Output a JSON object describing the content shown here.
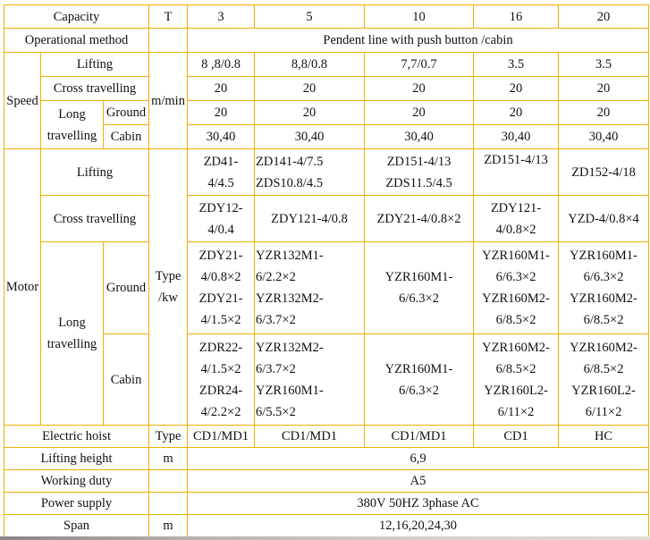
{
  "capacity": {
    "label": "Capacity",
    "unit": "T",
    "values": [
      "3",
      "5",
      "10",
      "16",
      "20"
    ]
  },
  "operational": {
    "label": "Operational method",
    "value": "Pendent line with push button /cabin"
  },
  "speed": {
    "label": "Speed",
    "unit": "m/min",
    "lifting": {
      "label": "Lifting",
      "values": [
        "8 ,8/0.8",
        "8,8/0.8",
        "7,7/0.7",
        "3.5",
        "3.5"
      ]
    },
    "cross": {
      "label": "Cross travelling",
      "values": [
        "20",
        "20",
        "20",
        "20",
        "20"
      ]
    },
    "long": {
      "label": "Long\ntravelling",
      "ground": {
        "label": "Ground",
        "values": [
          "20",
          "20",
          "20",
          "20",
          "20"
        ]
      },
      "cabin": {
        "label": "Cabin",
        "values": [
          "30,40",
          "30,40",
          "30,40",
          "30,40",
          "30,40"
        ]
      }
    }
  },
  "motor": {
    "label": "Motor",
    "unit": "Type\n/kw",
    "lifting": {
      "label": "Lifting",
      "values": [
        "ZD41-\n4/4.5",
        "ZD141-4/7.5\nZDS10.8/4.5",
        "ZD151-4/13\nZDS11.5/4.5",
        "ZD151-4/13\n ",
        "ZD152-4/18"
      ]
    },
    "cross": {
      "label": "Cross travelling",
      "values": [
        "ZDY12-\n4/0.4",
        "ZDY121-4/0.8",
        "ZDY21-4/0.8×2",
        "ZDY121-\n4/0.8×2",
        "YZD-4/0.8×4"
      ]
    },
    "long": {
      "label": "Long\ntravelling",
      "ground": {
        "label": "Ground",
        "values": [
          "ZDY21-\n4/0.8×2\nZDY21-\n4/1.5×2",
          "YZR132M1-\n6/2.2×2\nYZR132M2-\n6/3.7×2",
          "YZR160M1-\n6/6.3×2",
          "YZR160M1-\n6/6.3×2\nYZR160M2-\n6/8.5×2",
          "YZR160M1-\n6/6.3×2\nYZR160M2-\n6/8.5×2"
        ]
      },
      "cabin": {
        "label": "Cabin",
        "values": [
          "ZDR22-\n4/1.5×2\nZDR24-\n4/2.2×2",
          "YZR132M2-\n6/3.7×2\nYZR160M1-\n6/5.5×2",
          "YZR160M1-\n6/6.3×2",
          "YZR160M2-\n6/8.5×2\nYZR160L2-\n6/11×2",
          "YZR160M2-\n6/8.5×2\nYZR160L2-\n6/11×2"
        ]
      }
    }
  },
  "hoist": {
    "label": "Electric hoist",
    "unit": "Type",
    "values": [
      "CD1/MD1",
      "CD1/MD1",
      "CD1/MD1",
      "CD1",
      "HC"
    ]
  },
  "lifting_height": {
    "label": "Lifting height",
    "unit": "m",
    "value": "6,9"
  },
  "working_duty": {
    "label": "Working duty",
    "value": "A5"
  },
  "power": {
    "label": "Power supply",
    "value": "380V 50HZ 3phase AC"
  },
  "span": {
    "label": "Span",
    "unit": "m",
    "value": "12,16,20,24,30"
  },
  "border_color": "#f0b000"
}
